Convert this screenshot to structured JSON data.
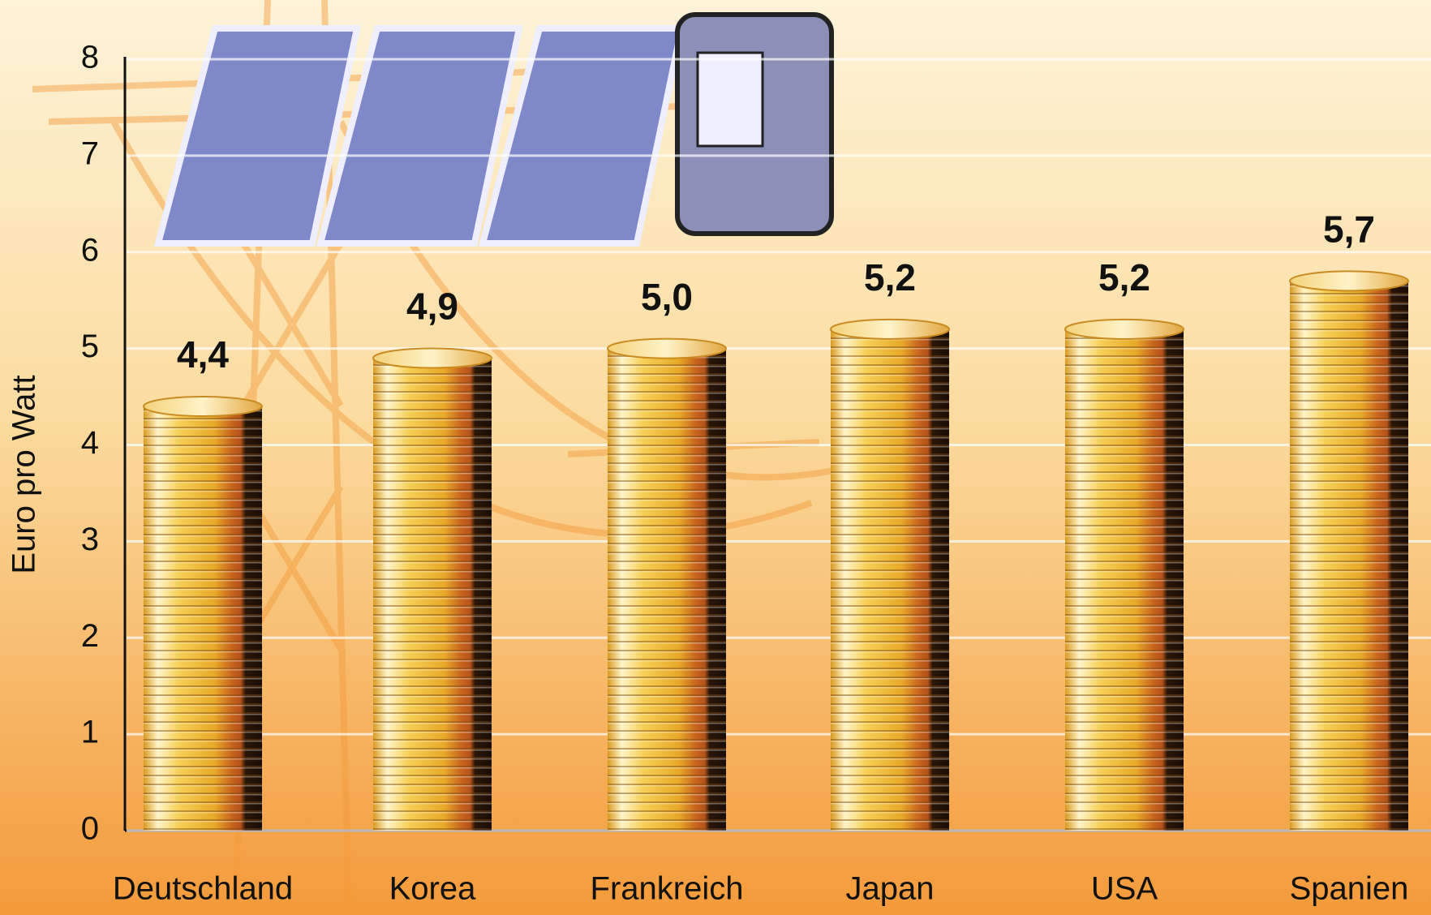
{
  "chart_data": {
    "type": "bar",
    "y_label": "Euro pro Watt",
    "categories": [
      "Deutschland",
      "Korea",
      "Frankreich",
      "Japan",
      "USA",
      "Spanien"
    ],
    "values": [
      4.4,
      4.9,
      5.0,
      5.2,
      5.2,
      5.7
    ],
    "value_labels": [
      "4,4",
      "4,9",
      "5,0",
      "5,2",
      "5,2",
      "5,7"
    ],
    "color": "#e8b830",
    "ylim": [
      0,
      8
    ],
    "yticks": [
      0,
      1,
      2,
      3,
      4,
      5,
      6,
      7,
      8
    ],
    "grid": true
  }
}
